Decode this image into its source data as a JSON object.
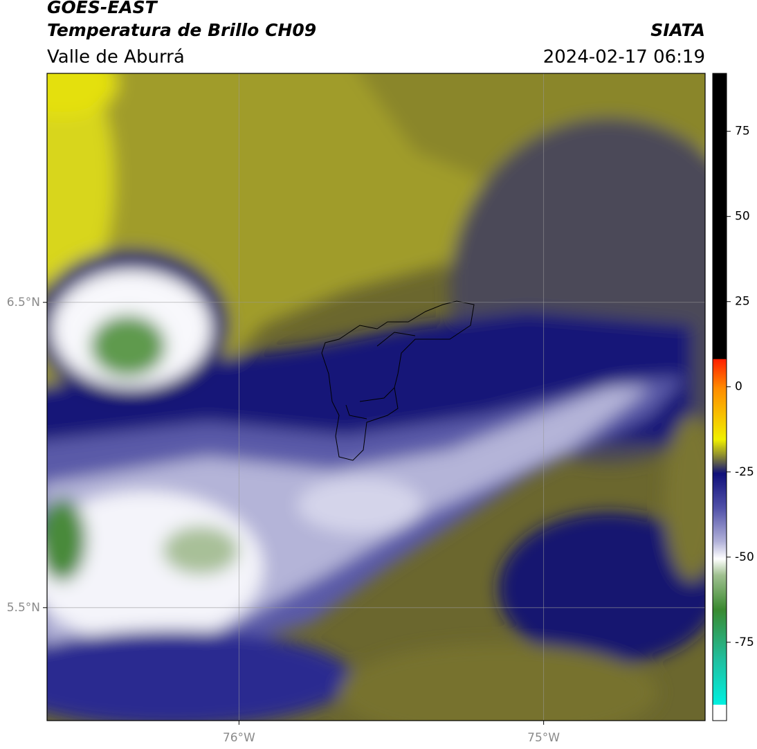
{
  "header": {
    "title": "GOES-EAST",
    "subtitle": "Temperatura de Brillo CH09",
    "region": "Valle de Aburrá",
    "source": "SIATA",
    "datetime": "2024-02-17 06:19"
  },
  "map": {
    "lonlim": [
      -76.63,
      -74.47
    ],
    "latlim": [
      5.13,
      7.25
    ],
    "lonticks": [
      {
        "value": -76,
        "label": "76°W"
      },
      {
        "value": -75,
        "label": "75°W"
      }
    ],
    "latticks": [
      {
        "value": 6.5,
        "label": "6.5°N"
      },
      {
        "value": 5.5,
        "label": "5.5°N"
      }
    ]
  },
  "colorbar": {
    "lim": [
      -98,
      92
    ],
    "ticks": [
      75,
      50,
      25,
      0,
      -25,
      -50,
      -75
    ]
  }
}
